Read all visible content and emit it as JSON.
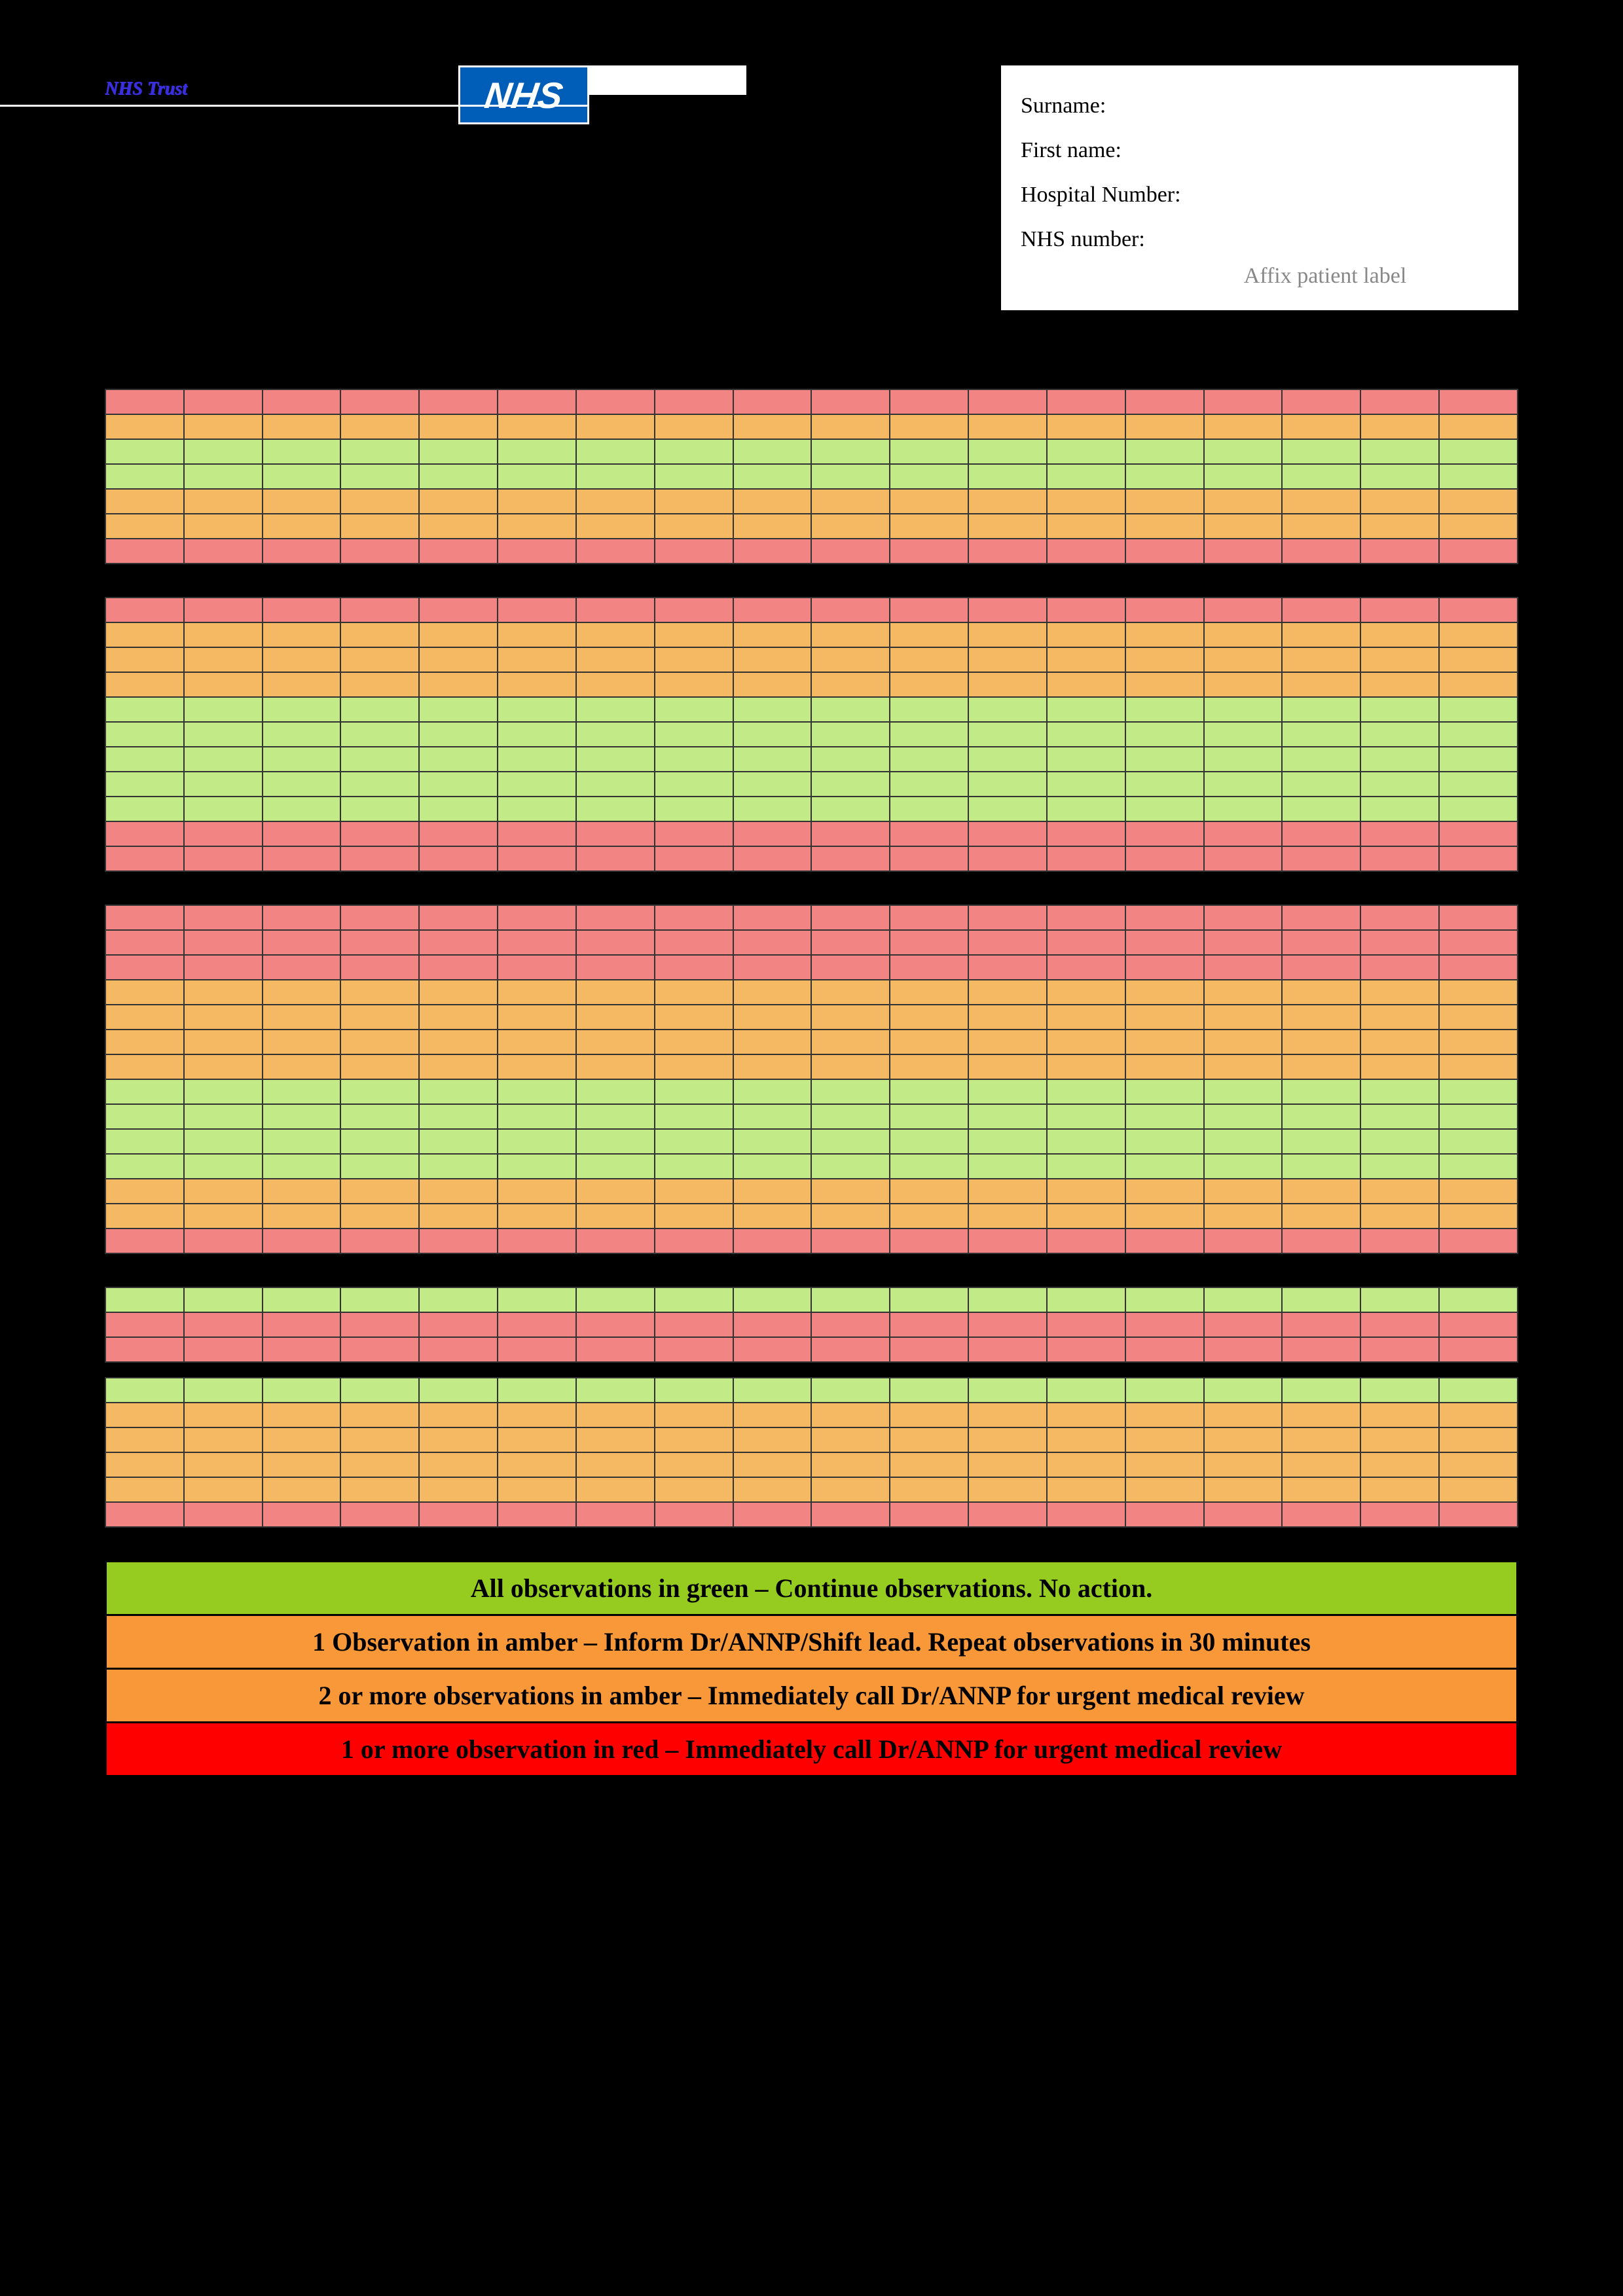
{
  "header": {
    "trust_text": "NHS Trust",
    "nhs_logo_text": "NHS"
  },
  "patient_box": {
    "surname_label": "Surname:",
    "firstname_label": "First name:",
    "hospital_label": "Hospital Number:",
    "nhs_number_label": "NHS number:",
    "affix_label": "Affix patient label"
  },
  "chart": {
    "columns": 18,
    "sections": [
      {
        "name": "section-1",
        "rows": [
          {
            "color": "red"
          },
          {
            "color": "amber"
          },
          {
            "color": "green"
          },
          {
            "color": "green"
          },
          {
            "color": "amber"
          },
          {
            "color": "amber"
          },
          {
            "color": "red"
          }
        ]
      },
      {
        "name": "section-2",
        "rows": [
          {
            "color": "red"
          },
          {
            "color": "amber"
          },
          {
            "color": "amber"
          },
          {
            "color": "amber"
          },
          {
            "color": "green"
          },
          {
            "color": "green"
          },
          {
            "color": "green"
          },
          {
            "color": "green"
          },
          {
            "color": "green"
          },
          {
            "color": "red"
          },
          {
            "color": "red"
          }
        ]
      },
      {
        "name": "section-3",
        "rows": [
          {
            "color": "red"
          },
          {
            "color": "red"
          },
          {
            "color": "red"
          },
          {
            "color": "amber"
          },
          {
            "color": "amber"
          },
          {
            "color": "amber"
          },
          {
            "color": "amber"
          },
          {
            "color": "green"
          },
          {
            "color": "green"
          },
          {
            "color": "green"
          },
          {
            "color": "green"
          },
          {
            "color": "amber"
          },
          {
            "color": "amber"
          },
          {
            "color": "red"
          }
        ]
      },
      {
        "name": "section-4a",
        "rows": [
          {
            "color": "green"
          },
          {
            "color": "red"
          },
          {
            "color": "red"
          }
        ]
      },
      {
        "name": "section-4b",
        "rows": [
          {
            "color": "green"
          },
          {
            "color": "amber"
          },
          {
            "color": "amber"
          },
          {
            "color": "amber"
          },
          {
            "color": "amber"
          },
          {
            "color": "red"
          }
        ]
      }
    ]
  },
  "color_map": {
    "red": "#f38484",
    "amber": "#f5b963",
    "green": "#c2eb88",
    "dgreen": "#95cc1f",
    "damber": "#f99838",
    "dred": "#ff0000"
  },
  "guidance": [
    {
      "color_class": "c-dgreen",
      "text": "All observations in green – Continue observations. No action."
    },
    {
      "color_class": "c-damber",
      "text": "1 Observation in amber – Inform Dr/ANNP/Shift lead. Repeat observations in 30 minutes"
    },
    {
      "color_class": "c-damber",
      "text": "2 or more observations in amber – Immediately call Dr/ANNP for urgent medical review"
    },
    {
      "color_class": "c-dred",
      "text": "1 or more observation in red – Immediately call Dr/ANNP for urgent medical review"
    }
  ]
}
